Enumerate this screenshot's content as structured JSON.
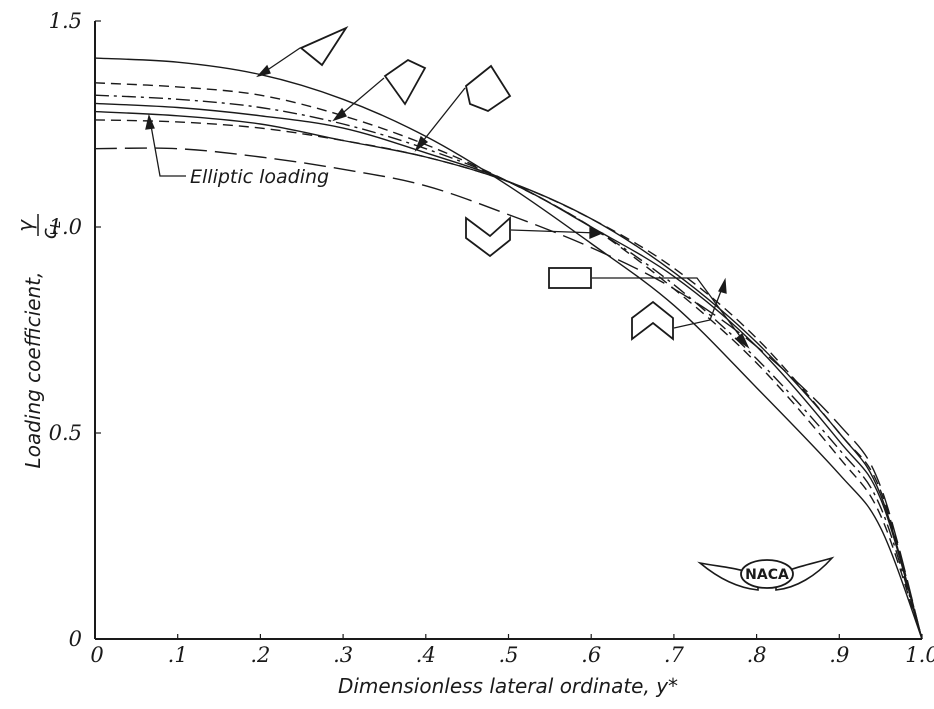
{
  "chart_data": {
    "type": "line",
    "title": "",
    "xlabel": "Dimensionless lateral ordinate, y*",
    "ylabel": "Loading coefficient,",
    "ylabel_fraction": {
      "numerator": "γ",
      "denominator": "c",
      "denominator_sub": "L"
    },
    "xlim": [
      0,
      1.0
    ],
    "ylim": [
      0,
      1.5
    ],
    "x_ticks": [
      {
        "value": 0,
        "label": "0"
      },
      {
        "value": 0.1,
        "label": ".1"
      },
      {
        "value": 0.2,
        "label": ".2"
      },
      {
        "value": 0.3,
        "label": ".3"
      },
      {
        "value": 0.4,
        "label": ".4"
      },
      {
        "value": 0.5,
        "label": ".5"
      },
      {
        "value": 0.6,
        "label": ".6"
      },
      {
        "value": 0.7,
        "label": ".7"
      },
      {
        "value": 0.8,
        "label": ".8"
      },
      {
        "value": 0.9,
        "label": ".9"
      },
      {
        "value": 1.0,
        "label": "1.0"
      }
    ],
    "y_ticks": [
      {
        "value": 0,
        "label": "0"
      },
      {
        "value": 0.5,
        "label": "0.5"
      },
      {
        "value": 1.0,
        "label": "1.0"
      },
      {
        "value": 1.5,
        "label": "1.5"
      }
    ],
    "grid": false,
    "series": [
      {
        "id": "inverted-triangle",
        "dash": "solid",
        "x": [
          0,
          0.1,
          0.2,
          0.3,
          0.4,
          0.5,
          0.6,
          0.7,
          0.8,
          0.9,
          0.95,
          1.0
        ],
        "y": [
          1.41,
          1.4,
          1.37,
          1.31,
          1.22,
          1.1,
          0.96,
          0.81,
          0.61,
          0.4,
          0.27,
          0.0
        ]
      },
      {
        "id": "kite",
        "dash": "dashed",
        "x": [
          0,
          0.1,
          0.2,
          0.3,
          0.4,
          0.5,
          0.6,
          0.7,
          0.8,
          0.9,
          0.95,
          1.0
        ],
        "y": [
          1.35,
          1.34,
          1.32,
          1.27,
          1.2,
          1.11,
          1.0,
          0.85,
          0.67,
          0.44,
          0.3,
          0.0
        ]
      },
      {
        "id": "pentagon",
        "dash": "dashdot",
        "x": [
          0,
          0.1,
          0.2,
          0.3,
          0.4,
          0.5,
          0.6,
          0.7,
          0.8,
          0.9,
          0.95,
          1.0
        ],
        "y": [
          1.32,
          1.31,
          1.29,
          1.25,
          1.19,
          1.11,
          1.0,
          0.86,
          0.68,
          0.46,
          0.32,
          0.0
        ]
      },
      {
        "id": "chevron",
        "dash": "solid",
        "x": [
          0,
          0.1,
          0.2,
          0.3,
          0.4,
          0.5,
          0.6,
          0.7,
          0.8,
          0.9,
          0.95,
          1.0
        ],
        "y": [
          1.3,
          1.29,
          1.27,
          1.24,
          1.18,
          1.11,
          1.0,
          0.88,
          0.71,
          0.48,
          0.34,
          0.0
        ]
      },
      {
        "id": "rectangle",
        "dash": "dashed",
        "x": [
          0,
          0.1,
          0.2,
          0.3,
          0.4,
          0.5,
          0.6,
          0.7,
          0.8,
          0.9,
          0.95,
          1.0
        ],
        "y": [
          1.26,
          1.255,
          1.24,
          1.21,
          1.17,
          1.11,
          1.02,
          0.9,
          0.73,
          0.5,
          0.36,
          0.0
        ]
      },
      {
        "id": "arrowhead",
        "dash": "solid",
        "x": [
          0,
          0.1,
          0.2,
          0.3,
          0.4,
          0.5,
          0.6,
          0.7,
          0.8,
          0.9,
          0.95,
          1.0
        ],
        "y": [
          1.28,
          1.27,
          1.25,
          1.21,
          1.17,
          1.11,
          1.02,
          0.89,
          0.72,
          0.5,
          0.35,
          0.0
        ]
      },
      {
        "id": "elliptic",
        "dash": "longdash",
        "x": [
          0,
          0.1,
          0.2,
          0.3,
          0.4,
          0.5,
          0.6,
          0.7,
          0.8,
          0.9,
          0.95,
          1.0
        ],
        "y": [
          1.19,
          1.19,
          1.17,
          1.14,
          1.1,
          1.03,
          0.95,
          0.85,
          0.71,
          0.52,
          0.37,
          0.0
        ]
      }
    ],
    "annotations": [
      {
        "label": "Elliptic loading",
        "series": "elliptic"
      }
    ],
    "logo_text": "NACA"
  },
  "colors": {
    "ink": "#1a1a1a",
    "background": "#ffffff"
  }
}
